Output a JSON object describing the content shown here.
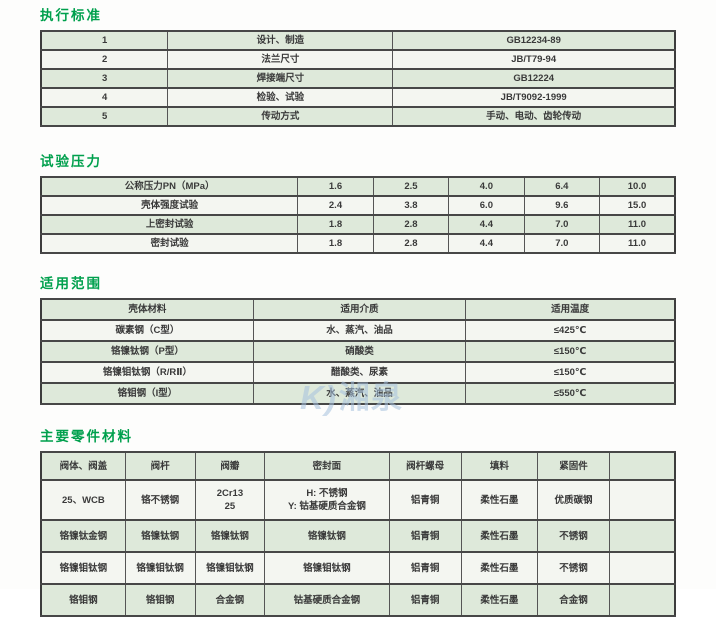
{
  "colors": {
    "title_green": "#00A04D",
    "row_green": "#dee9da",
    "row_alt": "#f4f6f1",
    "border_dark": "#3c3c3c",
    "watermark_blue": "#a7c2de"
  },
  "watermark": {
    "mark": "K)",
    "text": "湘泉"
  },
  "sections": [
    {
      "title": "执行标准",
      "table": {
        "rows": [
          [
            "1",
            "设计、制造",
            "GB12234-89"
          ],
          [
            "2",
            "法兰尺寸",
            "JB/T79-94"
          ],
          [
            "3",
            "焊接端尺寸",
            "GB12224"
          ],
          [
            "4",
            "检验、试验",
            "JB/T9092-1999"
          ],
          [
            "5",
            "传动方式",
            "手动、电动、齿轮传动"
          ]
        ]
      }
    },
    {
      "title": "试验压力",
      "table": {
        "rows": [
          [
            "公称压力PN（MPa）",
            "1.6",
            "2.5",
            "4.0",
            "6.4",
            "10.0"
          ],
          [
            "壳体强度试验",
            "2.4",
            "3.8",
            "6.0",
            "9.6",
            "15.0"
          ],
          [
            "上密封试验",
            "1.8",
            "2.8",
            "4.4",
            "7.0",
            "11.0"
          ],
          [
            "密封试验",
            "1.8",
            "2.8",
            "4.4",
            "7.0",
            "11.0"
          ]
        ]
      }
    },
    {
      "title": "适用范围",
      "table": {
        "header": [
          "壳体材料",
          "适用介质",
          "适用温度"
        ],
        "rows": [
          [
            "碳素钢（C型）",
            "水、蒸汽、油品",
            "≤425℃"
          ],
          [
            "铬镍钛钢（P型）",
            "硝酸类",
            "≤150℃"
          ],
          [
            "铬镍钼钛钢（R/RⅡ）",
            "醋酸类、尿素",
            "≤150℃"
          ],
          [
            "铬钼钢（I型）",
            "水、蒸汽、油品",
            "≤550℃"
          ]
        ]
      }
    },
    {
      "title": "主要零件材料",
      "table": {
        "header": [
          "阀体、阀盖",
          "阀杆",
          "阀瓣",
          "密封面",
          "阀杆螺母",
          "填料",
          "紧固件",
          ""
        ],
        "rows": [
          [
            "25、WCB",
            "铬不锈钢",
            "2Cr13\n25",
            "H: 不锈钢\nY: 钴基硬质合金钢",
            "铝青铜",
            "柔性石墨",
            "优质碳钢",
            ""
          ],
          [
            "铬镍钛金钢",
            "铬镍钛钢",
            "铬镍钛钢",
            "铬镍钛钢",
            "铝青铜",
            "柔性石墨",
            "不锈钢",
            ""
          ],
          [
            "铬镍钼钛钢",
            "铬镍钼钛钢",
            "铬镍钼钛钢",
            "铬镍钼钛钢",
            "铝青铜",
            "柔性石墨",
            "不锈钢",
            ""
          ],
          [
            "铬钼钢",
            "铬钼钢",
            "合金钢",
            "钴基硬质合金钢",
            "铝青铜",
            "柔性石墨",
            "合金钢",
            ""
          ]
        ]
      }
    }
  ]
}
